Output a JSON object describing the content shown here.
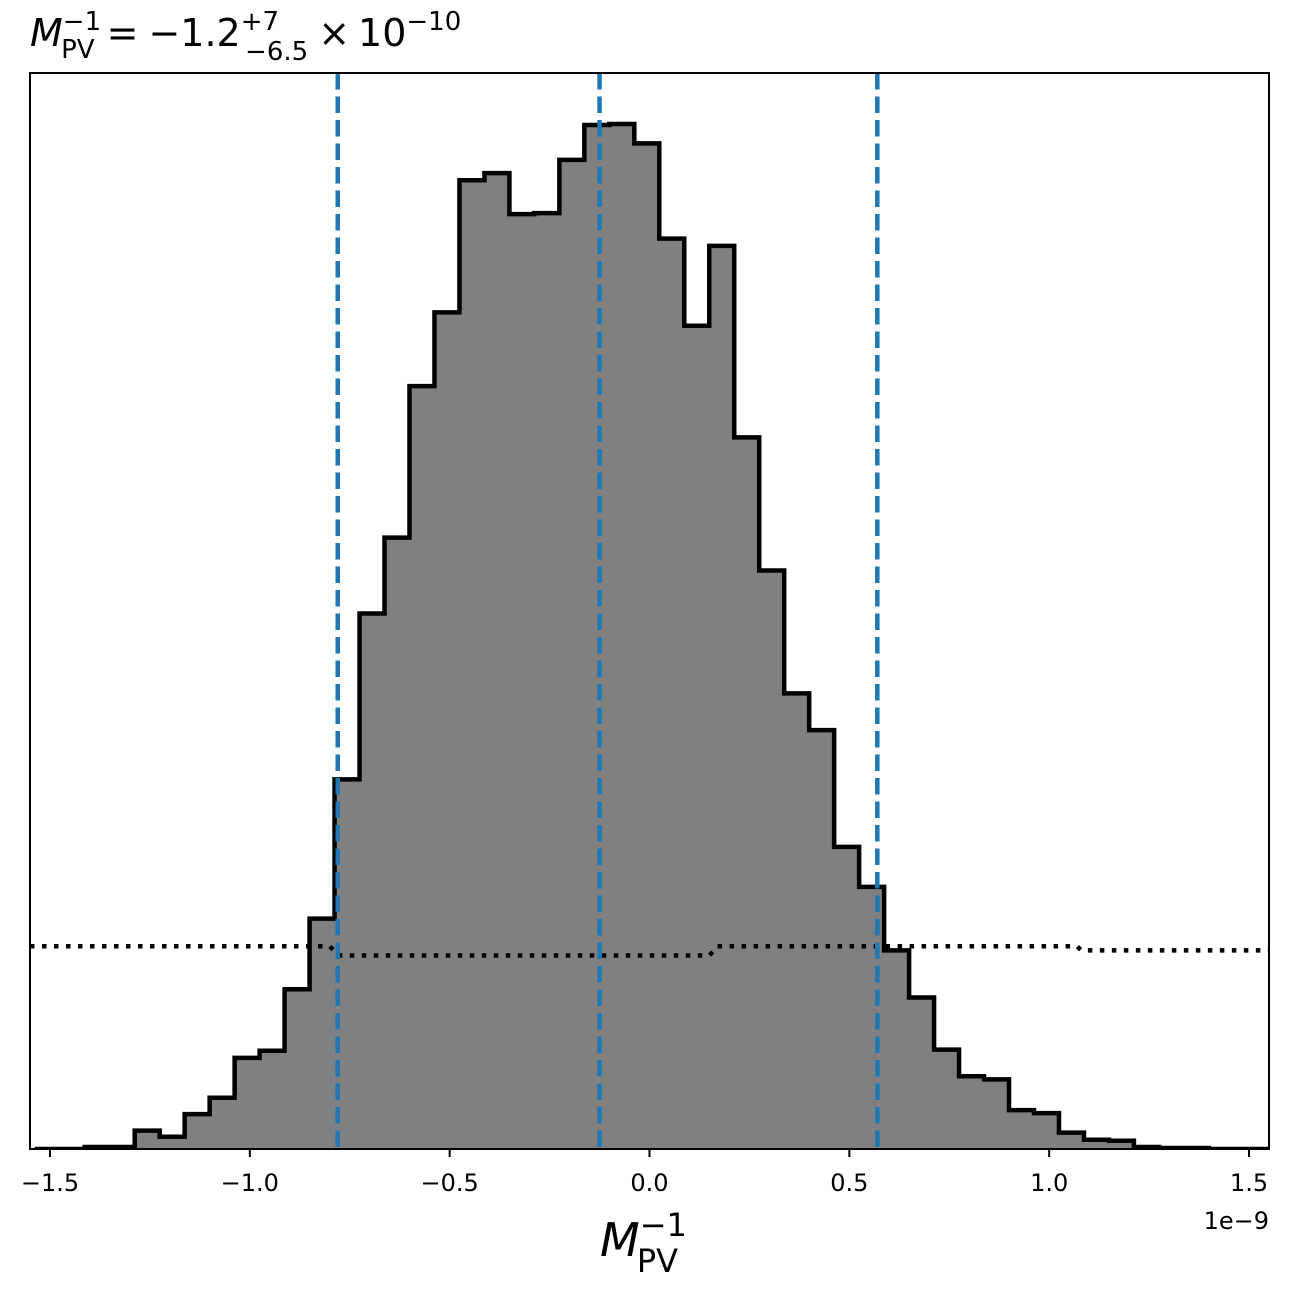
{
  "chart_data": {
    "type": "histogram",
    "title": {
      "symbol": "M",
      "symbol_sub": "PV",
      "symbol_sup": "−1",
      "equals": "=",
      "value": "−1.2",
      "upper_err": "+7",
      "lower_err": "−6.5",
      "times": "×",
      "base": "10",
      "exponent": "−10"
    },
    "xlabel": {
      "symbol": "M",
      "sub": "PV",
      "sup": "−1"
    },
    "offset_text": "1e−9",
    "xlim": [
      -1.55,
      1.55
    ],
    "ylim": [
      0,
      1.0
    ],
    "x_ticks": [
      {
        "value": -1.5,
        "label": "−1.5"
      },
      {
        "value": -1.0,
        "label": "−1.0"
      },
      {
        "value": -0.5,
        "label": "−0.5"
      },
      {
        "value": 0.0,
        "label": "0.0"
      },
      {
        "value": 0.5,
        "label": "0.5"
      },
      {
        "value": 1.0,
        "label": "1.0"
      },
      {
        "value": 1.5,
        "label": "1.5"
      }
    ],
    "bins": {
      "start": -1.538,
      "width": 0.0625,
      "heights": [
        0.0,
        0.0,
        0.002,
        0.002,
        0.018,
        0.012,
        0.034,
        0.05,
        0.089,
        0.096,
        0.156,
        0.225,
        0.361,
        0.523,
        0.597,
        0.745,
        0.817,
        0.946,
        0.953,
        0.913,
        0.914,
        0.966,
        1.0,
        1.001,
        0.982,
        0.889,
        0.804,
        0.882,
        0.695,
        0.565,
        0.445,
        0.409,
        0.295,
        0.256,
        0.194,
        0.148,
        0.097,
        0.071,
        0.068,
        0.038,
        0.035,
        0.016,
        0.009,
        0.008,
        0.002,
        0.001,
        0.001,
        0.0,
        0.0,
        0.0
      ]
    },
    "fill_color": "#808080",
    "edge_color": "#000000",
    "quantile_lines": {
      "values": [
        -0.78,
        -0.125,
        0.57
      ],
      "color": "#1f77b4",
      "style": "dashed"
    },
    "prior_line": {
      "style": "dotted",
      "color": "#000000",
      "points": [
        [
          -1.55,
          0.198
        ],
        [
          -0.8,
          0.198
        ],
        [
          -0.78,
          0.189
        ],
        [
          0.15,
          0.189
        ],
        [
          0.17,
          0.198
        ],
        [
          1.07,
          0.198
        ],
        [
          1.08,
          0.194
        ],
        [
          1.55,
          0.194
        ]
      ]
    }
  }
}
